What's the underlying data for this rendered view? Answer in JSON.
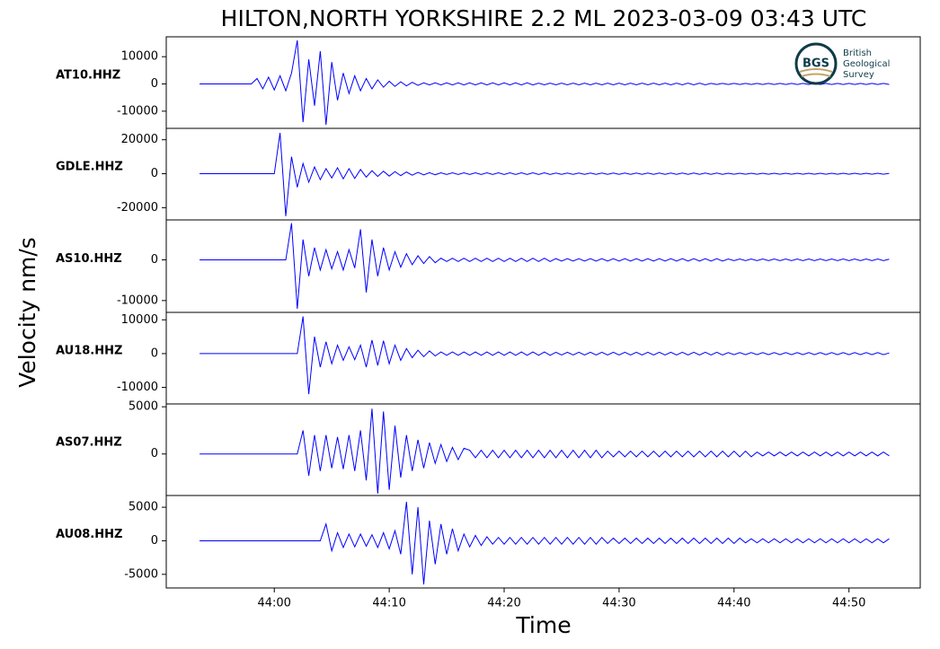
{
  "chart_data": {
    "type": "line",
    "title": "HILTON,NORTH YORKSHIRE 2.2 ML   2023-03-09 03:43 UTC",
    "xlabel": "Time",
    "ylabel": "Velocity nm/s",
    "color": "#0000ff",
    "xlim": [
      50.6,
      116.2
    ],
    "xticks": [
      {
        "value": 60,
        "label": "44:00"
      },
      {
        "value": 70,
        "label": "44:10"
      },
      {
        "value": 80,
        "label": "44:20"
      },
      {
        "value": 90,
        "label": "44:30"
      },
      {
        "value": 100,
        "label": "44:40"
      },
      {
        "value": 110,
        "label": "44:50"
      }
    ],
    "x": [
      53.5,
      54,
      54.5,
      55,
      55.5,
      56,
      56.5,
      57,
      57.5,
      58,
      58.5,
      59,
      59.5,
      60,
      60.5,
      61,
      61.5,
      62,
      62.5,
      63,
      63.5,
      64,
      64.5,
      65,
      65.5,
      66,
      66.5,
      67,
      67.5,
      68,
      68.5,
      69,
      69.5,
      70,
      70.5,
      71,
      71.5,
      72,
      72.5,
      73,
      73.5,
      74,
      74.5,
      75,
      75.5,
      76,
      76.5,
      77,
      77.5,
      78,
      78.5,
      79,
      79.5,
      80,
      80.5,
      81,
      81.5,
      82,
      82.5,
      83,
      83.5,
      84,
      84.5,
      85,
      85.5,
      86,
      86.5,
      87,
      87.5,
      88,
      88.5,
      89,
      89.5,
      90,
      90.5,
      91,
      91.5,
      92,
      92.5,
      93,
      93.5,
      94,
      94.5,
      95,
      95.5,
      96,
      96.5,
      97,
      97.5,
      98,
      98.5,
      99,
      99.5,
      100,
      100.5,
      101,
      101.5,
      102,
      102.5,
      103,
      103.5,
      104,
      104.5,
      105,
      105.5,
      106,
      106.5,
      107,
      107.5,
      108,
      108.5,
      109,
      109.5,
      110,
      110.5,
      111,
      111.5,
      112,
      112.5,
      113,
      113.5
    ],
    "series": [
      {
        "name": "AT10.HHZ",
        "ylim": [
          -16300,
          17300
        ],
        "yticks": [
          -10000,
          0,
          10000
        ],
        "values": [
          0,
          0,
          0,
          0,
          0,
          0,
          0,
          0,
          0,
          0,
          2000,
          -1800,
          2500,
          -2200,
          3000,
          -2500,
          4000,
          16000,
          -14000,
          9000,
          -8000,
          12000,
          -15000,
          8000,
          -6000,
          4000,
          -3500,
          3000,
          -2500,
          2000,
          -1800,
          1500,
          -1200,
          1000,
          -900,
          800,
          -700,
          600,
          -500,
          400,
          -350,
          400,
          -350,
          400,
          -350,
          400,
          -350,
          400,
          -350,
          400,
          -350,
          400,
          -350,
          400,
          -350,
          400,
          -350,
          400,
          -350,
          300,
          -300,
          300,
          -300,
          300,
          -300,
          300,
          -300,
          300,
          -300,
          300,
          -300,
          300,
          -300,
          300,
          -300,
          300,
          -300,
          300,
          -300,
          300,
          -300,
          300,
          -300,
          300,
          -300,
          300,
          -300,
          300,
          -300,
          200,
          -200,
          200,
          -200,
          200,
          -200,
          200,
          -200,
          200,
          -200,
          200,
          -200,
          200,
          -200,
          200,
          -200,
          200,
          -200,
          200,
          -200,
          200,
          -200,
          200,
          -200,
          200,
          -200,
          200,
          -200,
          200,
          -200,
          200,
          -200
        ]
      },
      {
        "name": "GDLE.HHZ",
        "ylim": [
          -27200,
          26700
        ],
        "yticks": [
          -20000,
          0,
          20000
        ],
        "values": [
          0,
          0,
          0,
          0,
          0,
          0,
          0,
          0,
          0,
          0,
          0,
          0,
          0,
          0,
          24000,
          -25000,
          10000,
          -8000,
          6000,
          -5000,
          4000,
          -3500,
          3000,
          -2500,
          3500,
          -3000,
          3000,
          -2800,
          2500,
          -2000,
          1800,
          -1600,
          1500,
          -1400,
          1200,
          -1100,
          1000,
          -900,
          800,
          -700,
          600,
          -600,
          500,
          -450,
          500,
          -450,
          500,
          -450,
          500,
          -450,
          500,
          -450,
          500,
          -450,
          500,
          -450,
          500,
          -450,
          500,
          -450,
          500,
          -450,
          400,
          -400,
          400,
          -400,
          400,
          -400,
          400,
          -400,
          400,
          -400,
          400,
          -400,
          400,
          -400,
          400,
          -400,
          400,
          -400,
          400,
          -400,
          400,
          -400,
          400,
          -400,
          400,
          -400,
          400,
          -400,
          400,
          -400,
          300,
          -300,
          300,
          -300,
          300,
          -300,
          300,
          -300,
          300,
          -300,
          300,
          -300,
          300,
          -300,
          300,
          -300,
          300,
          -300,
          300,
          -300,
          300,
          -300,
          300,
          -300,
          300,
          -300,
          300,
          -300,
          200
        ]
      },
      {
        "name": "AS10.HHZ",
        "ylim": [
          -12900,
          9800
        ],
        "yticks": [
          -10000,
          0
        ],
        "values": [
          0,
          0,
          0,
          0,
          0,
          0,
          0,
          0,
          0,
          0,
          0,
          0,
          0,
          0,
          0,
          0,
          9000,
          -12000,
          5000,
          -4000,
          3000,
          -2500,
          2500,
          -2200,
          2000,
          -2500,
          2500,
          -2000,
          7500,
          -8000,
          5000,
          -4000,
          3000,
          -2500,
          2000,
          -1800,
          1500,
          -1200,
          1000,
          -900,
          800,
          -700,
          400,
          -400,
          400,
          -400,
          400,
          -400,
          400,
          -400,
          400,
          -400,
          400,
          -400,
          400,
          -400,
          400,
          -400,
          400,
          -400,
          400,
          -400,
          300,
          -300,
          300,
          -300,
          300,
          -300,
          300,
          -300,
          300,
          -300,
          300,
          -300,
          300,
          -300,
          300,
          -300,
          300,
          -300,
          300,
          -300,
          300,
          -300,
          300,
          -300,
          300,
          -300,
          300,
          -300,
          300,
          -300,
          200,
          -200,
          200,
          -200,
          200,
          -200,
          200,
          -200,
          200,
          -200,
          200,
          -200,
          200,
          -200,
          200,
          -200,
          200,
          -200,
          200,
          -200,
          200,
          -200,
          200,
          -200,
          200,
          -200,
          200,
          -200,
          150
        ]
      },
      {
        "name": "AU18.HHZ",
        "ylim": [
          -14900,
          12200
        ],
        "yticks": [
          -10000,
          0,
          10000
        ],
        "values": [
          0,
          0,
          0,
          0,
          0,
          0,
          0,
          0,
          0,
          0,
          0,
          0,
          0,
          0,
          0,
          0,
          0,
          0,
          11000,
          -12000,
          5000,
          -4000,
          3500,
          -3000,
          2500,
          -2000,
          2000,
          -1800,
          2500,
          -4000,
          4000,
          -3500,
          3800,
          -3000,
          2500,
          -2000,
          1500,
          -1200,
          1000,
          -900,
          800,
          -700,
          500,
          -500,
          500,
          -500,
          500,
          -500,
          500,
          -500,
          500,
          -500,
          500,
          -500,
          500,
          -500,
          500,
          -500,
          500,
          -500,
          500,
          -500,
          400,
          -400,
          400,
          -400,
          400,
          -400,
          400,
          -400,
          400,
          -400,
          400,
          -400,
          400,
          -400,
          400,
          -400,
          400,
          -400,
          400,
          -400,
          400,
          -400,
          400,
          -400,
          400,
          -400,
          400,
          -400,
          400,
          -400,
          300,
          -300,
          300,
          -300,
          300,
          -300,
          300,
          -300,
          300,
          -300,
          300,
          -300,
          300,
          -300,
          300,
          -300,
          300,
          -300,
          300,
          -300,
          300,
          -300,
          300,
          -300,
          300,
          -300,
          300,
          -300,
          200
        ]
      },
      {
        "name": "AS07.HHZ",
        "ylim": [
          -4400,
          5300
        ],
        "yticks": [
          0,
          5000
        ],
        "values": [
          0,
          0,
          0,
          0,
          0,
          0,
          0,
          0,
          0,
          0,
          0,
          0,
          0,
          0,
          0,
          0,
          0,
          0,
          2500,
          -2300,
          2000,
          -1800,
          2000,
          -1500,
          1800,
          -1600,
          2000,
          -1800,
          2500,
          -2800,
          4800,
          -4200,
          4500,
          -3800,
          3000,
          -2500,
          2000,
          -1800,
          1500,
          -1500,
          1200,
          -1000,
          1000,
          -800,
          700,
          -600,
          600,
          400,
          -400,
          400,
          -400,
          400,
          -400,
          400,
          -400,
          400,
          -400,
          400,
          -400,
          400,
          -400,
          400,
          -400,
          400,
          -400,
          400,
          -400,
          400,
          -400,
          400,
          -400,
          300,
          -300,
          300,
          -300,
          300,
          -300,
          300,
          -300,
          300,
          -300,
          300,
          -300,
          300,
          -300,
          300,
          -300,
          300,
          -300,
          300,
          -300,
          300,
          -300,
          300,
          -300,
          300,
          -300,
          200,
          -200,
          200,
          -200,
          200,
          -200,
          200,
          -200,
          200,
          -200,
          200,
          -200,
          200,
          -200,
          200,
          -200,
          200,
          -200,
          200,
          -200,
          200,
          -200,
          200,
          -200
        ]
      },
      {
        "name": "AU08.HHZ",
        "ylim": [
          -7030,
          6750
        ],
        "yticks": [
          -5000,
          0,
          5000
        ],
        "values": [
          0,
          0,
          0,
          0,
          0,
          0,
          0,
          0,
          0,
          0,
          0,
          0,
          0,
          0,
          0,
          0,
          0,
          0,
          0,
          0,
          0,
          0,
          2500,
          -1500,
          1200,
          -1000,
          1000,
          -900,
          1000,
          -800,
          900,
          -1000,
          1200,
          -1200,
          1500,
          -2000,
          5800,
          -5000,
          5000,
          -6500,
          3000,
          -3500,
          2500,
          -2000,
          1800,
          -1500,
          1000,
          -900,
          800,
          -700,
          600,
          -500,
          500,
          -500,
          500,
          -500,
          500,
          -500,
          500,
          -500,
          500,
          -500,
          500,
          -500,
          500,
          -500,
          500,
          -500,
          500,
          -500,
          500,
          -400,
          400,
          -400,
          400,
          -400,
          400,
          -400,
          400,
          -400,
          400,
          -400,
          400,
          -400,
          400,
          -400,
          400,
          -400,
          400,
          -400,
          400,
          -400,
          400,
          -400,
          400,
          -300,
          300,
          -300,
          300,
          -300,
          300,
          -300,
          300,
          -300,
          300,
          -300,
          300,
          -300,
          300,
          -300,
          300,
          -300,
          300,
          -300,
          300,
          -300,
          300,
          -300,
          300,
          -300,
          300
        ]
      }
    ]
  },
  "logo": {
    "abbr": "BGS",
    "lines": [
      "British",
      "Geological",
      "Survey"
    ]
  }
}
